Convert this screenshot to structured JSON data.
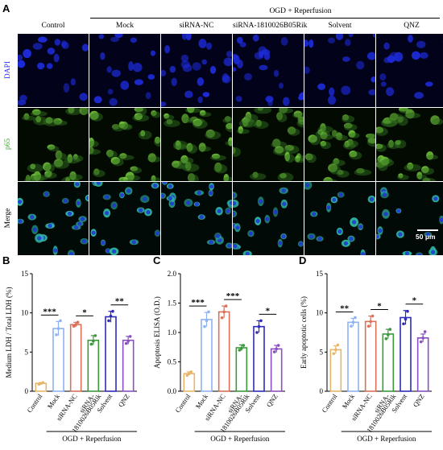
{
  "figure": {
    "panel_a_letter": "A",
    "panel_b_letter": "B",
    "panel_c_letter": "C",
    "panel_d_letter": "D",
    "group_header": "OGD + Reperfusion",
    "columns": [
      "Control",
      "Mock",
      "siRNA-NC",
      "siRNA-1810026B05Rik",
      "Solvent",
      "QNZ"
    ],
    "rows": [
      {
        "label": "DAPI",
        "color": "#2a2aff",
        "bg": "#02021a",
        "cell_color": "#1d2bd8"
      },
      {
        "label": "p65",
        "color": "#3aa82a",
        "bg": "#020a02",
        "cell_color": "#6fbf3a"
      },
      {
        "label": "Merge",
        "color": "#000000",
        "bg": "#020a08",
        "cell_color": "#2fb7a0"
      }
    ],
    "scale_bar_label": "50 μm"
  },
  "chart_data": [
    {
      "type": "bar",
      "panel": "B",
      "ylabel": "Medium LDH / Total LDH (%)",
      "xlabel": "OGD + Reperfusion",
      "categories": [
        "Control",
        "Mock",
        "siRNA-NC",
        "siRNA-1810026B05Rik",
        "Solvent",
        "QNZ"
      ],
      "tick_labels": [
        "Control",
        "Mock",
        "siRNA-NC",
        "siRNA-\n1810026B05Rik",
        "Solvent",
        "QNZ"
      ],
      "values": [
        1.0,
        8.0,
        8.5,
        6.5,
        9.5,
        6.5
      ],
      "errors": [
        0.1,
        0.9,
        0.3,
        0.6,
        0.7,
        0.5
      ],
      "points": [
        [
          0.9,
          1.0,
          1.1
        ],
        [
          7.2,
          8.0,
          9.0
        ],
        [
          8.3,
          8.5,
          8.8
        ],
        [
          6.0,
          6.4,
          7.1
        ],
        [
          9.0,
          9.6,
          10.2
        ],
        [
          6.1,
          6.4,
          7.0
        ]
      ],
      "colors": [
        "#e8b66a",
        "#8fb2f2",
        "#d9705a",
        "#3a9a3a",
        "#2e2bb8",
        "#8a4fc0"
      ],
      "ylim": [
        0,
        15
      ],
      "yticks": [
        0,
        5,
        10,
        15
      ],
      "significance": [
        {
          "from": 0,
          "to": 1,
          "label": "***"
        },
        {
          "from": 2,
          "to": 3,
          "label": "*"
        },
        {
          "from": 4,
          "to": 5,
          "label": "**"
        }
      ]
    },
    {
      "type": "bar",
      "panel": "C",
      "ylabel": "Apoptosis ELISA (O.D.)",
      "xlabel": "OGD + Reperfusion",
      "categories": [
        "Control",
        "Mock",
        "siRNA-NC",
        "siRNA-1810026B05Rik",
        "Solvent",
        "QNZ"
      ],
      "tick_labels": [
        "Control",
        "Mock",
        "siRNA-NC",
        "siRNA-\n1810026B05Rik",
        "Solvent",
        "QNZ"
      ],
      "values": [
        0.3,
        1.22,
        1.35,
        0.74,
        1.1,
        0.72
      ],
      "errors": [
        0.03,
        0.12,
        0.1,
        0.05,
        0.1,
        0.06
      ],
      "points": [
        [
          0.27,
          0.3,
          0.33
        ],
        [
          1.1,
          1.2,
          1.35
        ],
        [
          1.25,
          1.35,
          1.45
        ],
        [
          0.7,
          0.73,
          0.78
        ],
        [
          1.0,
          1.1,
          1.2
        ],
        [
          0.67,
          0.72,
          0.78
        ]
      ],
      "colors": [
        "#e8b66a",
        "#8fb2f2",
        "#d9705a",
        "#3a9a3a",
        "#2e2bb8",
        "#8a4fc0"
      ],
      "ylim": [
        0,
        2.0
      ],
      "yticks": [
        0.0,
        0.5,
        1.0,
        1.5,
        2.0
      ],
      "significance": [
        {
          "from": 0,
          "to": 1,
          "label": "***"
        },
        {
          "from": 2,
          "to": 3,
          "label": "***"
        },
        {
          "from": 4,
          "to": 5,
          "label": "*"
        }
      ]
    },
    {
      "type": "bar",
      "panel": "D",
      "ylabel": "Early apoptotic cells (%)",
      "xlabel": "OGD + Reperfusion",
      "categories": [
        "Control",
        "Mock",
        "siRNA-NC",
        "siRNA-1810026B05Rik",
        "Solvent",
        "QNZ"
      ],
      "tick_labels": [
        "Control",
        "Mock",
        "siRNA-NC",
        "siRNA-\n1810026B05Rik",
        "Solvent",
        "QNZ"
      ],
      "values": [
        5.3,
        8.8,
        8.9,
        7.3,
        9.4,
        6.8
      ],
      "errors": [
        0.5,
        0.5,
        0.7,
        0.6,
        0.9,
        0.5
      ],
      "points": [
        [
          4.8,
          5.3,
          5.9
        ],
        [
          8.3,
          8.8,
          9.4
        ],
        [
          8.3,
          8.9,
          9.6
        ],
        [
          6.7,
          7.2,
          7.9
        ],
        [
          8.6,
          9.2,
          10.2
        ],
        [
          6.3,
          6.8,
          7.6
        ]
      ],
      "colors": [
        "#e8b66a",
        "#8fb2f2",
        "#d9705a",
        "#3a9a3a",
        "#2e2bb8",
        "#8a4fc0"
      ],
      "ylim": [
        0,
        15
      ],
      "yticks": [
        0,
        5,
        10,
        15
      ],
      "significance": [
        {
          "from": 0,
          "to": 1,
          "label": "**"
        },
        {
          "from": 2,
          "to": 3,
          "label": "*"
        },
        {
          "from": 4,
          "to": 5,
          "label": "*"
        }
      ]
    }
  ]
}
